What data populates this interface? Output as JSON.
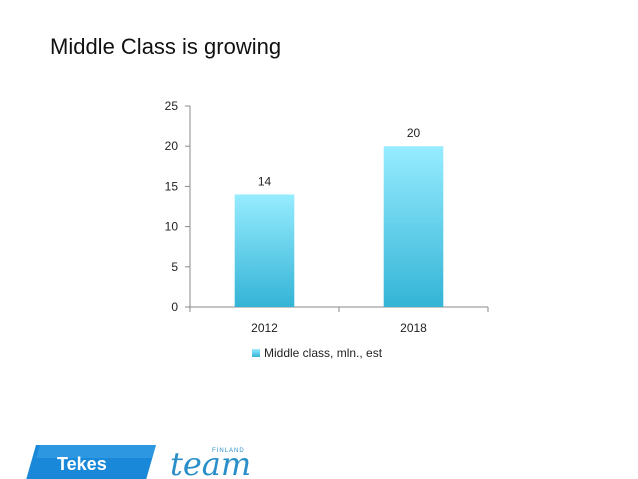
{
  "slide": {
    "title": "Middle Class is growing"
  },
  "chart_data": {
    "type": "bar",
    "categories": [
      "2012",
      "2018"
    ],
    "series": [
      {
        "name": "Middle class, mln., est",
        "values": [
          14,
          20
        ]
      }
    ],
    "ylim": [
      0,
      25
    ],
    "yticks": [
      0,
      5,
      10,
      15,
      20,
      25
    ],
    "data_labels": true,
    "grid": false,
    "legend": "bottom",
    "colors": {
      "bar_top": "#97ecff",
      "bar_bottom": "#34b4d6"
    }
  },
  "logos": {
    "tekes": "Tekes",
    "team": "team",
    "finland": "FINLAND"
  }
}
